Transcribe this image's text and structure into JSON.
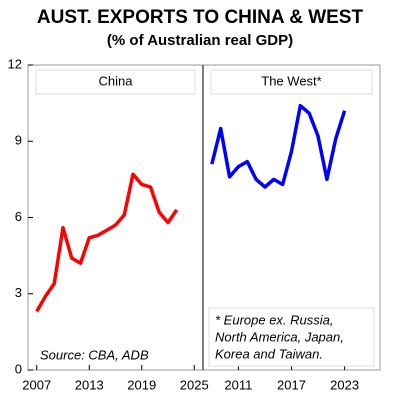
{
  "chart_data": [
    {
      "type": "line",
      "title": "AUST. EXPORTS TO CHINA & WEST",
      "subtitle": "(% of Australian real GDP)",
      "x": [
        2007,
        2008,
        2009,
        2010,
        2011,
        2012,
        2013,
        2014,
        2015,
        2016,
        2017,
        2018,
        2019,
        2020,
        2021,
        2022,
        2023
      ],
      "series": [
        {
          "name": "China",
          "color": "#ff0000",
          "values": [
            2.3,
            2.9,
            3.4,
            5.6,
            4.4,
            4.2,
            5.2,
            5.3,
            5.5,
            5.7,
            6.1,
            7.7,
            7.3,
            7.2,
            6.2,
            5.8,
            6.3
          ]
        }
      ],
      "xlim": [
        2006,
        2026
      ],
      "xticks": [
        2007,
        2013,
        2019,
        2025
      ],
      "ylim": [
        0,
        12
      ],
      "yticks": [
        0,
        3,
        6,
        9,
        12
      ],
      "source": "Source: CBA, ADB"
    },
    {
      "type": "line",
      "x": [
        2008,
        2009,
        2010,
        2011,
        2012,
        2013,
        2014,
        2015,
        2016,
        2017,
        2018,
        2019,
        2020,
        2021,
        2022,
        2023
      ],
      "series": [
        {
          "name": "The West*",
          "color": "#0000ff",
          "values": [
            8.1,
            9.5,
            7.6,
            8.0,
            8.2,
            7.5,
            7.2,
            7.5,
            7.3,
            8.6,
            10.4,
            10.1,
            9.2,
            7.5,
            9.1,
            10.2
          ]
        }
      ],
      "xlim": [
        2007,
        2027
      ],
      "xticks": [
        2011,
        2017,
        2023
      ],
      "ylim": [
        0,
        12
      ],
      "note": [
        "* Europe ex. Russia,",
        "North America, Japan,",
        "Korea and Taiwan."
      ]
    }
  ]
}
